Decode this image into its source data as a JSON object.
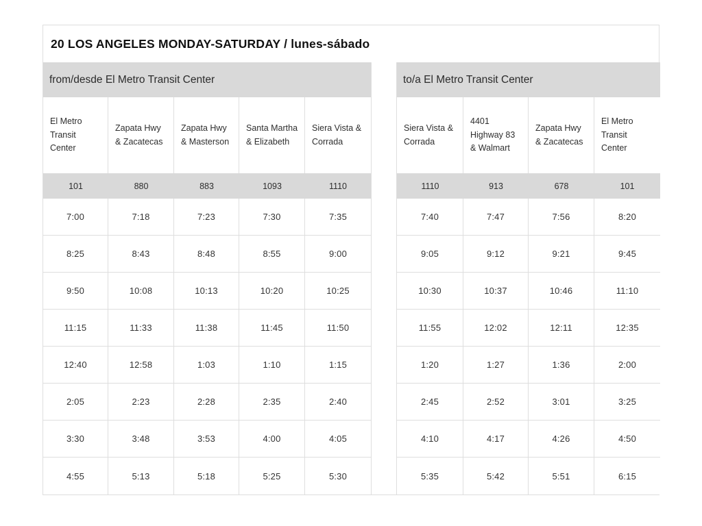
{
  "title": "20 LOS ANGELES MONDAY-SATURDAY / lunes-sábado",
  "colors": {
    "header_band": "#d9d9d9",
    "grid_border": "#dedede",
    "text": "#2e2e2e"
  },
  "outbound": {
    "section_label": "from/desde El Metro Transit Center",
    "stops": [
      "El Metro Transit Center",
      "Zapata Hwy & Zacatecas",
      "Zapata Hwy & Masterson",
      "Santa Martha & Elizabeth",
      "Siera Vista & Corrada"
    ],
    "stop_numbers": [
      "101",
      "880",
      "883",
      "1093",
      "1110"
    ],
    "times": [
      [
        "7:00",
        "7:18",
        "7:23",
        "7:30",
        "7:35"
      ],
      [
        "8:25",
        "8:43",
        "8:48",
        "8:55",
        "9:00"
      ],
      [
        "9:50",
        "10:08",
        "10:13",
        "10:20",
        "10:25"
      ],
      [
        "11:15",
        "11:33",
        "11:38",
        "11:45",
        "11:50"
      ],
      [
        "12:40",
        "12:58",
        "1:03",
        "1:10",
        "1:15"
      ],
      [
        "2:05",
        "2:23",
        "2:28",
        "2:35",
        "2:40"
      ],
      [
        "3:30",
        "3:48",
        "3:53",
        "4:00",
        "4:05"
      ],
      [
        "4:55",
        "5:13",
        "5:18",
        "5:25",
        "5:30"
      ]
    ]
  },
  "inbound": {
    "section_label": "to/a El Metro Transit Center",
    "stops": [
      "Siera Vista & Corrada",
      "4401 Highway 83 & Walmart",
      "Zapata Hwy & Zacatecas",
      "El Metro Transit Center"
    ],
    "stop_numbers": [
      "1110",
      "913",
      "678",
      "101"
    ],
    "times": [
      [
        "7:40",
        "7:47",
        "7:56",
        "8:20"
      ],
      [
        "9:05",
        "9:12",
        "9:21",
        "9:45"
      ],
      [
        "10:30",
        "10:37",
        "10:46",
        "11:10"
      ],
      [
        "11:55",
        "12:02",
        "12:11",
        "12:35"
      ],
      [
        "1:20",
        "1:27",
        "1:36",
        "2:00"
      ],
      [
        "2:45",
        "2:52",
        "3:01",
        "3:25"
      ],
      [
        "4:10",
        "4:17",
        "4:26",
        "4:50"
      ],
      [
        "5:35",
        "5:42",
        "5:51",
        "6:15"
      ]
    ]
  }
}
